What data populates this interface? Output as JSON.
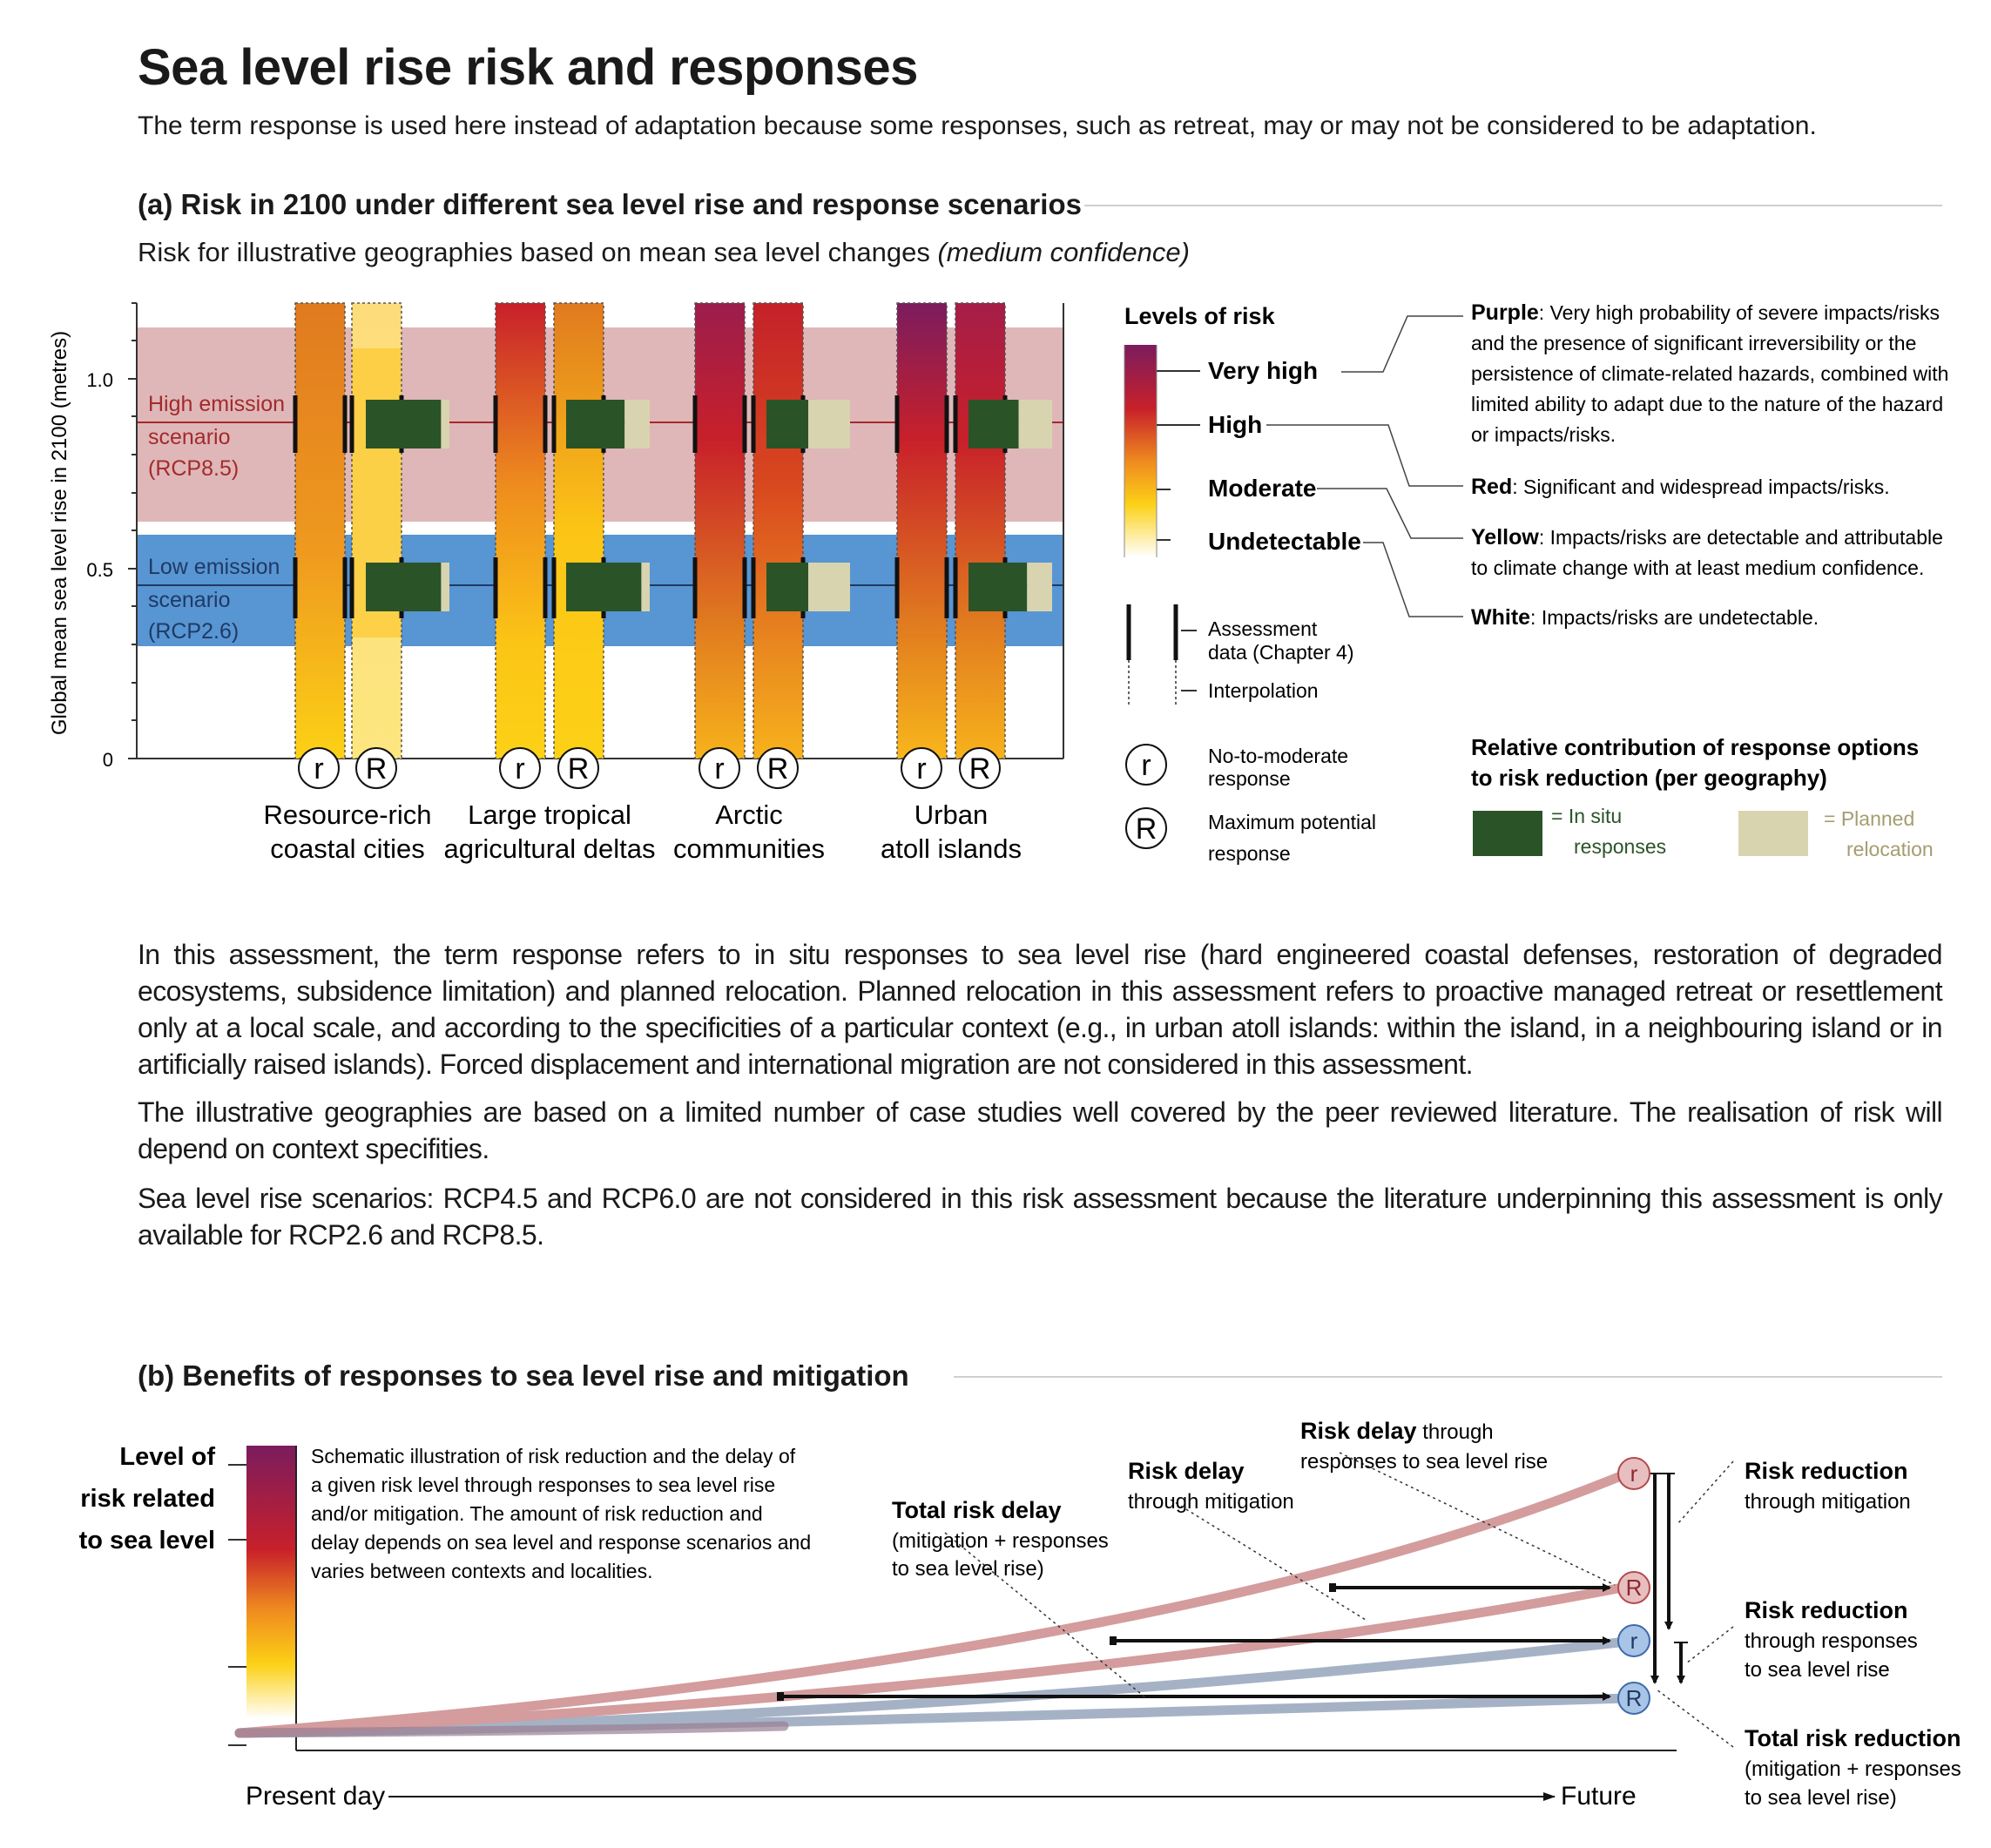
{
  "header": {
    "title": "Sea level rise risk and responses",
    "subtitle": "The term response is used here instead of adaptation because some responses, such as retreat, may or may not be considered to be adaptation."
  },
  "panel_a": {
    "title": "(a) Risk in 2100 under different sea level rise and response scenarios",
    "subtitle_main": "Risk for illustrative geographies based on mean sea level changes ",
    "subtitle_italic": "(medium confidence)",
    "ylabel": "Global mean sea level rise in 2100 (metres)",
    "yticks": [
      "0",
      "0.5",
      "1.0"
    ],
    "scenarios": {
      "high": {
        "line1": "High emission",
        "line2": "scenario",
        "line3": "(RCP8.5)"
      },
      "low": {
        "line1": "Low emission",
        "line2": "scenario",
        "line3": "(RCP2.6)"
      }
    },
    "response_r": "r",
    "response_R": "R",
    "geographies": [
      {
        "line1": "Resource-rich",
        "line2": "coastal cities"
      },
      {
        "line1": "Large tropical",
        "line2": "agricultural deltas"
      },
      {
        "line1": "Arctic",
        "line2": "communities"
      },
      {
        "line1": "Urban",
        "line2": "atoll islands"
      }
    ]
  },
  "legend": {
    "levels_title": "Levels of risk",
    "levels": [
      "Very high",
      "High",
      "Moderate",
      "Undetectable"
    ],
    "assessment": {
      "line1": "Assessment",
      "line2": "data (Chapter 4)"
    },
    "interpolation": "Interpolation",
    "no_to_moderate": {
      "line1": "No-to-moderate",
      "line2": "response"
    },
    "maximum": {
      "line1": "Maximum potential",
      "line2": "response"
    },
    "definitions": {
      "purple": {
        "label": "Purple",
        "lines": [
          ": Very high probability of severe impacts/risks",
          "and the presence of significant irreversibility or the",
          "persistence of climate-related hazards, combined with",
          "limited ability to adapt due to the nature of the hazard",
          "or impacts/risks."
        ]
      },
      "red": {
        "label": "Red",
        "text": ": Significant and widespread impacts/risks."
      },
      "yellow": {
        "label": "Yellow",
        "lines": [
          ": Impacts/risks are detectable and attributable",
          "to climate change with at least medium confidence."
        ]
      },
      "white": {
        "label": "White",
        "text": ": Impacts/risks are undetectable."
      }
    },
    "contribution_title": {
      "line1": "Relative contribution of response options",
      "line2": "to risk reduction (per geography)"
    },
    "in_situ": {
      "line1": "= In situ",
      "line2": "responses"
    },
    "planned": {
      "line1": "= Planned",
      "line2": "relocation"
    }
  },
  "paragraphs": [
    "In this assessment, the term response refers to in situ responses to sea level rise (hard engineered coastal defenses, restoration of degraded ecosystems, subsidence limitation) and planned relocation. Planned relocation in this assessment refers to proactive managed retreat or resettlement only at a local scale, and according to the specificities of a particular context (e.g., in urban atoll islands: within the island, in a neighbouring island or in artificially raised islands). Forced displacement and international migration are not considered in this assessment.",
    "The illustrative geographies are based on a limited number of case studies well covered by the peer reviewed literature. The realisation of risk will depend on context specifities.",
    "Sea level rise scenarios: RCP4.5 and RCP6.0 are not considered in this risk assessment because the literature underpinning this assessment is only available for RCP2.6 and RCP8.5."
  ],
  "panel_b": {
    "title": "(b) Benefits of responses to sea level rise and mitigation",
    "ylabel": [
      "Level of",
      "risk related",
      "to sea level"
    ],
    "description": [
      "Schematic illustration of risk reduction and the delay of",
      "a given risk level through responses to sea level rise",
      "and/or mitigation. The amount of risk reduction and",
      "delay depends on sea level and response scenarios and",
      "varies between contexts and localities."
    ],
    "x_start": "Present day",
    "x_end": "Future",
    "total_delay": {
      "bold": "Total risk delay",
      "lines": [
        "(mitigation + responses",
        "to sea level rise)"
      ]
    },
    "delay_mitigation": {
      "bold": "Risk delay",
      "lines": [
        "through mitigation"
      ]
    },
    "delay_responses": {
      "bold": "Risk delay",
      "rest": " through",
      "lines": [
        "responses to sea level rise"
      ]
    },
    "reduction_mitigation": {
      "bold": "Risk reduction",
      "lines": [
        "through mitigation"
      ]
    },
    "reduction_responses": {
      "bold": "Risk reduction",
      "lines": [
        "through responses",
        "to sea level rise"
      ]
    },
    "total_reduction": {
      "bold": "Total risk reduction",
      "lines": [
        "(mitigation + responses",
        "to sea level rise)"
      ]
    }
  },
  "colors": {
    "purple": "#7b1c5e",
    "red": "#c8202a",
    "orange": "#e07a1f",
    "yellow": "#fcd116",
    "high_band": "#dfb7b8",
    "low_band": "#5895d3",
    "in_situ": "#2a5427",
    "planned": "#d8d4b0",
    "high_curve": "#d49c9d",
    "low_curve": "#a5b2c6"
  },
  "chart_data": {
    "type": "bar",
    "title": "(a) Risk in 2100 under different sea level rise and response scenarios",
    "ylabel": "Global mean sea level rise in 2100 (metres)",
    "ylim": [
      0,
      1.2
    ],
    "yticks": [
      0,
      0.5,
      1.0
    ],
    "scenario_levels": {
      "RCP8.5": {
        "line": 0.86,
        "range": [
          0.61,
          1.11
        ]
      },
      "RCP2.6": {
        "line": 0.44,
        "range": [
          0.29,
          0.58
        ]
      }
    },
    "categories": [
      "Resource-rich coastal cities",
      "Large tropical agricultural deltas",
      "Arctic communities",
      "Urban atoll islands"
    ],
    "series": [
      {
        "name": "No-to-moderate response",
        "risk_at_top": [
          "high",
          "very high",
          "very high",
          "very high"
        ]
      },
      {
        "name": "Maximum potential response",
        "risk_at_top": [
          "moderate",
          "high",
          "high",
          "very high"
        ]
      }
    ],
    "relative_contribution": [
      {
        "geography": "Resource-rich coastal cities",
        "RCP8.5": {
          "in_situ": 0.9,
          "planned_relocation": 0.1
        },
        "RCP2.6": {
          "in_situ": 0.9,
          "planned_relocation": 0.1
        }
      },
      {
        "geography": "Large tropical agricultural deltas",
        "RCP8.5": {
          "in_situ": 0.7,
          "planned_relocation": 0.3
        },
        "RCP2.6": {
          "in_situ": 0.9,
          "planned_relocation": 0.1
        }
      },
      {
        "geography": "Arctic communities",
        "RCP8.5": {
          "in_situ": 0.5,
          "planned_relocation": 0.5
        },
        "RCP2.6": {
          "in_situ": 0.5,
          "planned_relocation": 0.5
        }
      },
      {
        "geography": "Urban atoll islands",
        "RCP8.5": {
          "in_situ": 0.6,
          "planned_relocation": 0.4
        },
        "RCP2.6": {
          "in_situ": 0.7,
          "planned_relocation": 0.3
        }
      }
    ],
    "grid": false,
    "legend": "right"
  }
}
